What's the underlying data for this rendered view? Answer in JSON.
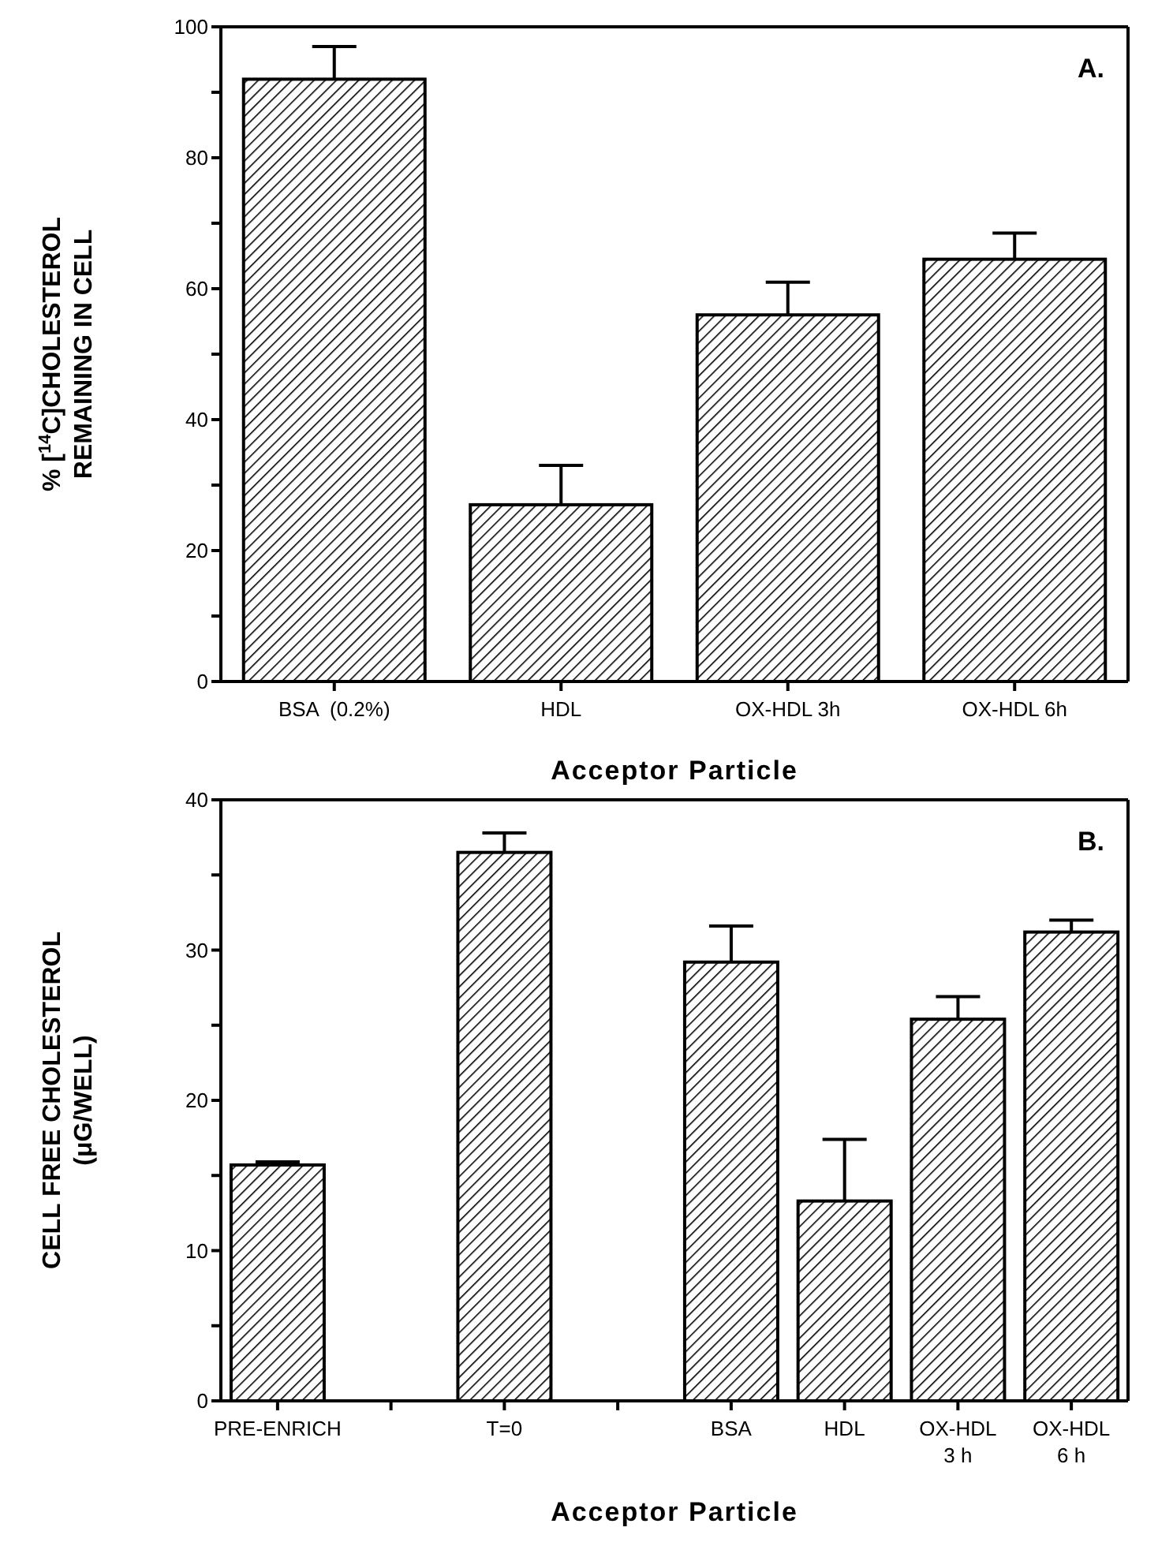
{
  "chart_data": [
    {
      "type": "bar",
      "categories": [
        "BSA  (0.2%)",
        "HDL",
        "OX-HDL 3h",
        "OX-HDL 6h"
      ],
      "values": [
        92,
        27,
        56,
        64.5
      ],
      "errors": [
        [
          92,
          97
        ],
        [
          27,
          33
        ],
        [
          56,
          61
        ],
        [
          64.5,
          68.5
        ]
      ],
      "color": "#000000",
      "ylim": [
        0,
        100
      ],
      "yticks": [
        0,
        {
          "value": 10,
          "label": null
        },
        20,
        {
          "value": 30,
          "label": null
        },
        40,
        {
          "value": 50,
          "label": null
        },
        60,
        {
          "value": 70,
          "label": null
        },
        80,
        {
          "value": 90,
          "label": null
        },
        100
      ],
      "ylabel": "% [$^{14}$C]CHOLESTEROL\nREMAINING IN CELL",
      "xlabel": "Acceptor   Particle",
      "annotations": [
        "A."
      ]
    },
    {
      "type": "bar",
      "categories": [
        "PRE-ENRICH",
        null,
        "T=0",
        null,
        "BSA",
        "HDL",
        "OX-HDL\n3 h",
        "OX-HDL\n6 h"
      ],
      "values": [
        15.7,
        null,
        36.5,
        null,
        29.2,
        13.3,
        25.4,
        31.2
      ],
      "errors": [
        [
          15.7,
          15.9
        ],
        null,
        [
          36.5,
          37.8
        ],
        null,
        [
          29.2,
          31.6
        ],
        [
          13.3,
          17.4
        ],
        [
          25.4,
          26.9
        ],
        [
          31.2,
          32
        ]
      ],
      "color": "#000000",
      "ylim": [
        0,
        40
      ],
      "yticks": [
        0,
        {
          "value": 5,
          "label": null
        },
        10,
        {
          "value": 15,
          "label": null
        },
        20,
        {
          "value": 25,
          "label": null
        },
        30,
        {
          "value": 35,
          "label": null
        },
        40
      ],
      "ylabel": "CELL FREE CHOLESTEROL\n(μG/WELL)",
      "xlabel": "Acceptor   Particle",
      "annotations": [
        "B."
      ]
    }
  ]
}
